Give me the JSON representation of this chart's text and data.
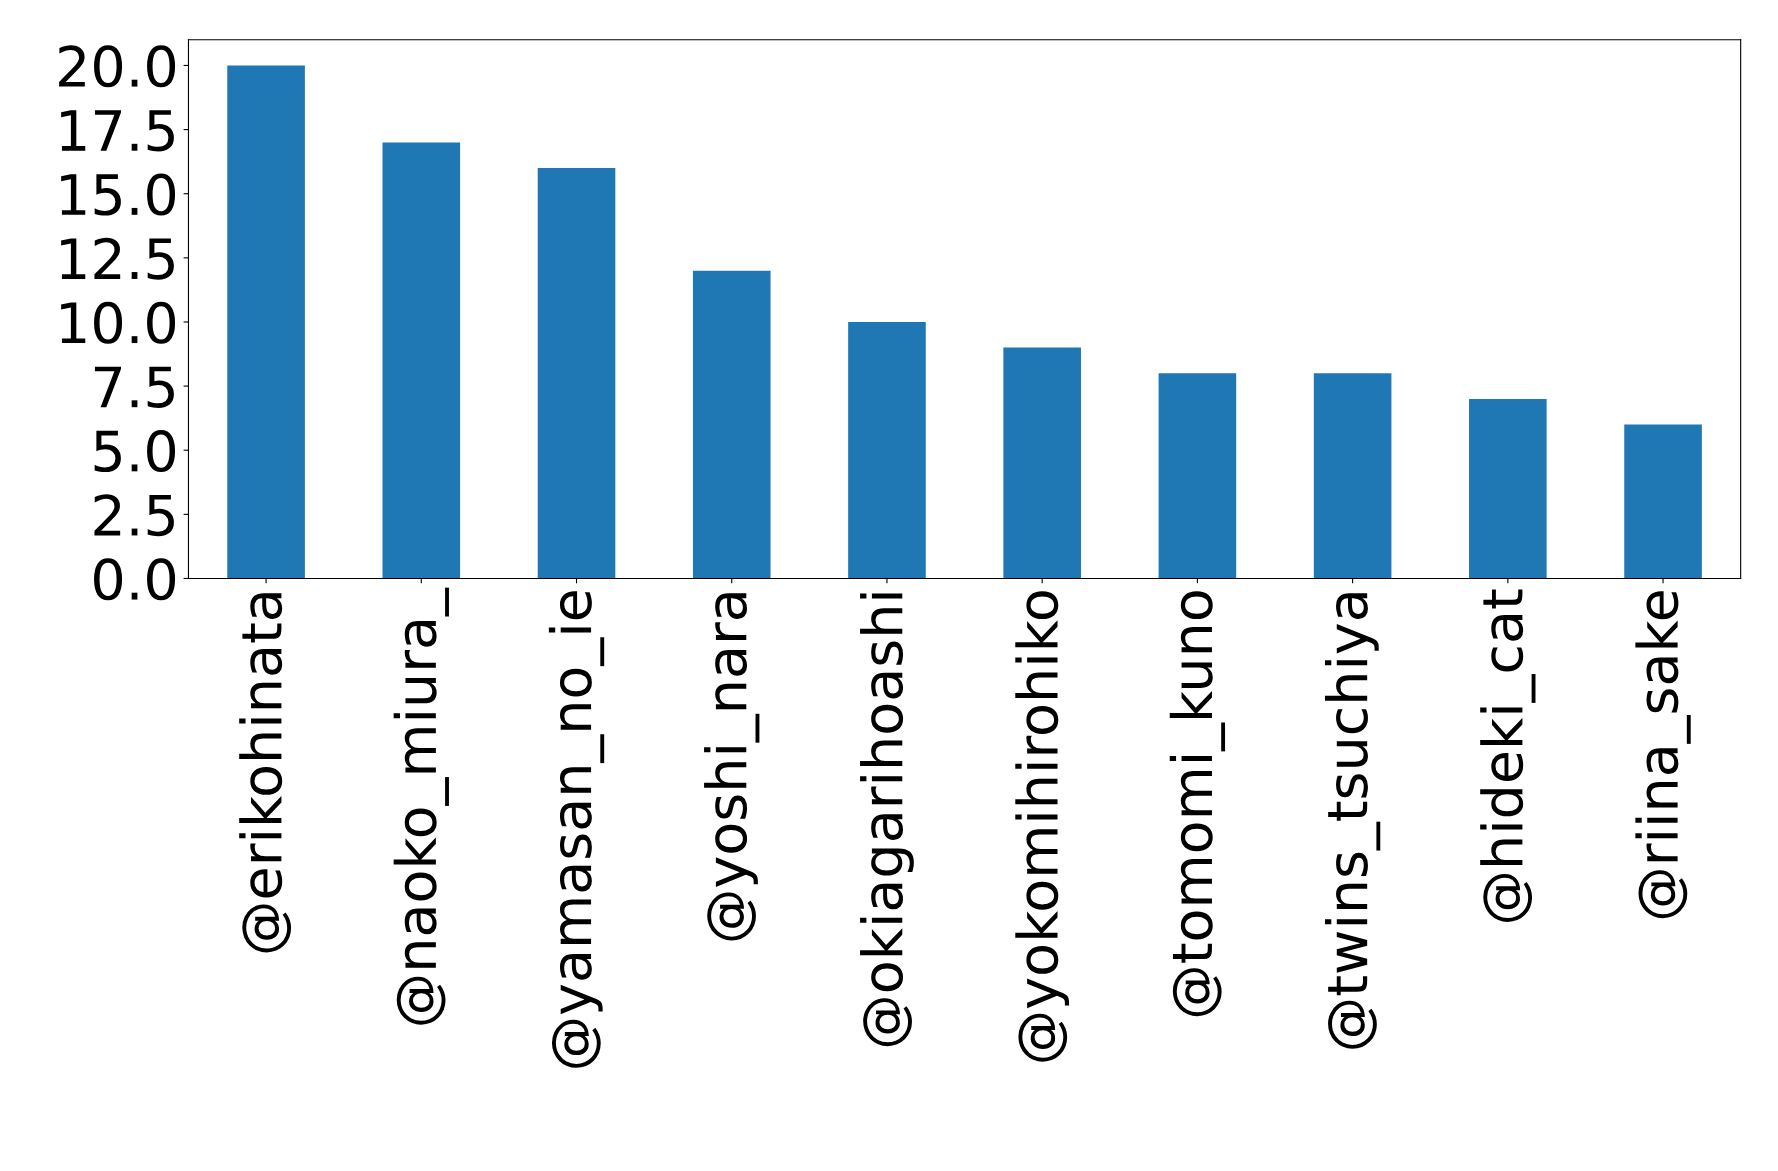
{
  "chart_data": {
    "type": "bar",
    "categories": [
      "@erikohinata",
      "@naoko_miura_",
      "@yamasan_no_ie",
      "@yoshi_nara",
      "@okiagarihoashi",
      "@yokomihirohiko",
      "@tomomi_kuno",
      "@twins_tsuchiya",
      "@hideki_cat",
      "@riina_sake"
    ],
    "values": [
      20,
      17,
      16,
      12,
      10,
      9,
      8,
      8,
      7,
      6
    ],
    "color": "#1f77b4",
    "ylim": [
      0,
      21
    ],
    "yticks": [
      {
        "value": 0,
        "label": "0.0"
      },
      {
        "value": 2.5,
        "label": "2.5"
      },
      {
        "value": 5,
        "label": "5.0"
      },
      {
        "value": 7.5,
        "label": "7.5"
      },
      {
        "value": 10,
        "label": "10.0"
      },
      {
        "value": 12.5,
        "label": "12.5"
      },
      {
        "value": 15,
        "label": "15.0"
      },
      {
        "value": 17.5,
        "label": "17.5"
      },
      {
        "value": 20,
        "label": "20.0"
      }
    ],
    "grid": false,
    "legend": false
  }
}
